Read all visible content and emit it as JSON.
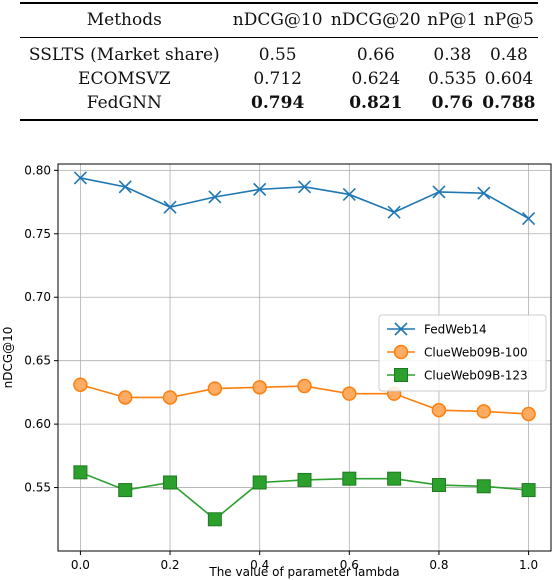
{
  "table": {
    "headers": [
      "Methods",
      "nDCG@10",
      "nDCG@20",
      "nP@1",
      "nP@5"
    ],
    "rows": [
      {
        "cells": [
          "SSLTS (Market share)",
          "0.55",
          "0.66",
          "0.38",
          "0.48"
        ],
        "bold": false
      },
      {
        "cells": [
          "ECOMSVZ",
          "0.712",
          "0.624",
          "0.535",
          "0.604"
        ],
        "bold": false
      },
      {
        "cells": [
          "FedGNN",
          "0.794",
          "0.821",
          "0.76",
          "0.788"
        ],
        "bold": true
      }
    ]
  },
  "chart_data": {
    "type": "line",
    "title": "",
    "xlabel": "The value of parameter lambda",
    "ylabel": "nDCG@10",
    "xlim": [
      -0.05,
      1.05
    ],
    "ylim": [
      0.5,
      0.805
    ],
    "xticks": [
      0.0,
      0.2,
      0.4,
      0.6,
      0.8,
      1.0
    ],
    "yticks": [
      0.55,
      0.6,
      0.65,
      0.7,
      0.75,
      0.8
    ],
    "grid": true,
    "legend_position": "center-right",
    "x": [
      0.0,
      0.1,
      0.2,
      0.3,
      0.4,
      0.5,
      0.6,
      0.7,
      0.8,
      0.9,
      1.0
    ],
    "series": [
      {
        "name": "FedWeb14",
        "marker": "x",
        "color": "#1f77b4",
        "values": [
          0.794,
          0.787,
          0.771,
          0.779,
          0.785,
          0.787,
          0.781,
          0.767,
          0.783,
          0.782,
          0.762
        ]
      },
      {
        "name": "ClueWeb09B-100",
        "marker": "circle",
        "color": "#ff7f0e",
        "values": [
          0.631,
          0.621,
          0.621,
          0.628,
          0.629,
          0.63,
          0.624,
          0.624,
          0.611,
          0.61,
          0.608
        ]
      },
      {
        "name": "ClueWeb09B-123",
        "marker": "square",
        "color": "#2ca02c",
        "values": [
          0.562,
          0.548,
          0.554,
          0.525,
          0.554,
          0.556,
          0.557,
          0.557,
          0.552,
          0.551,
          0.548
        ]
      }
    ]
  }
}
